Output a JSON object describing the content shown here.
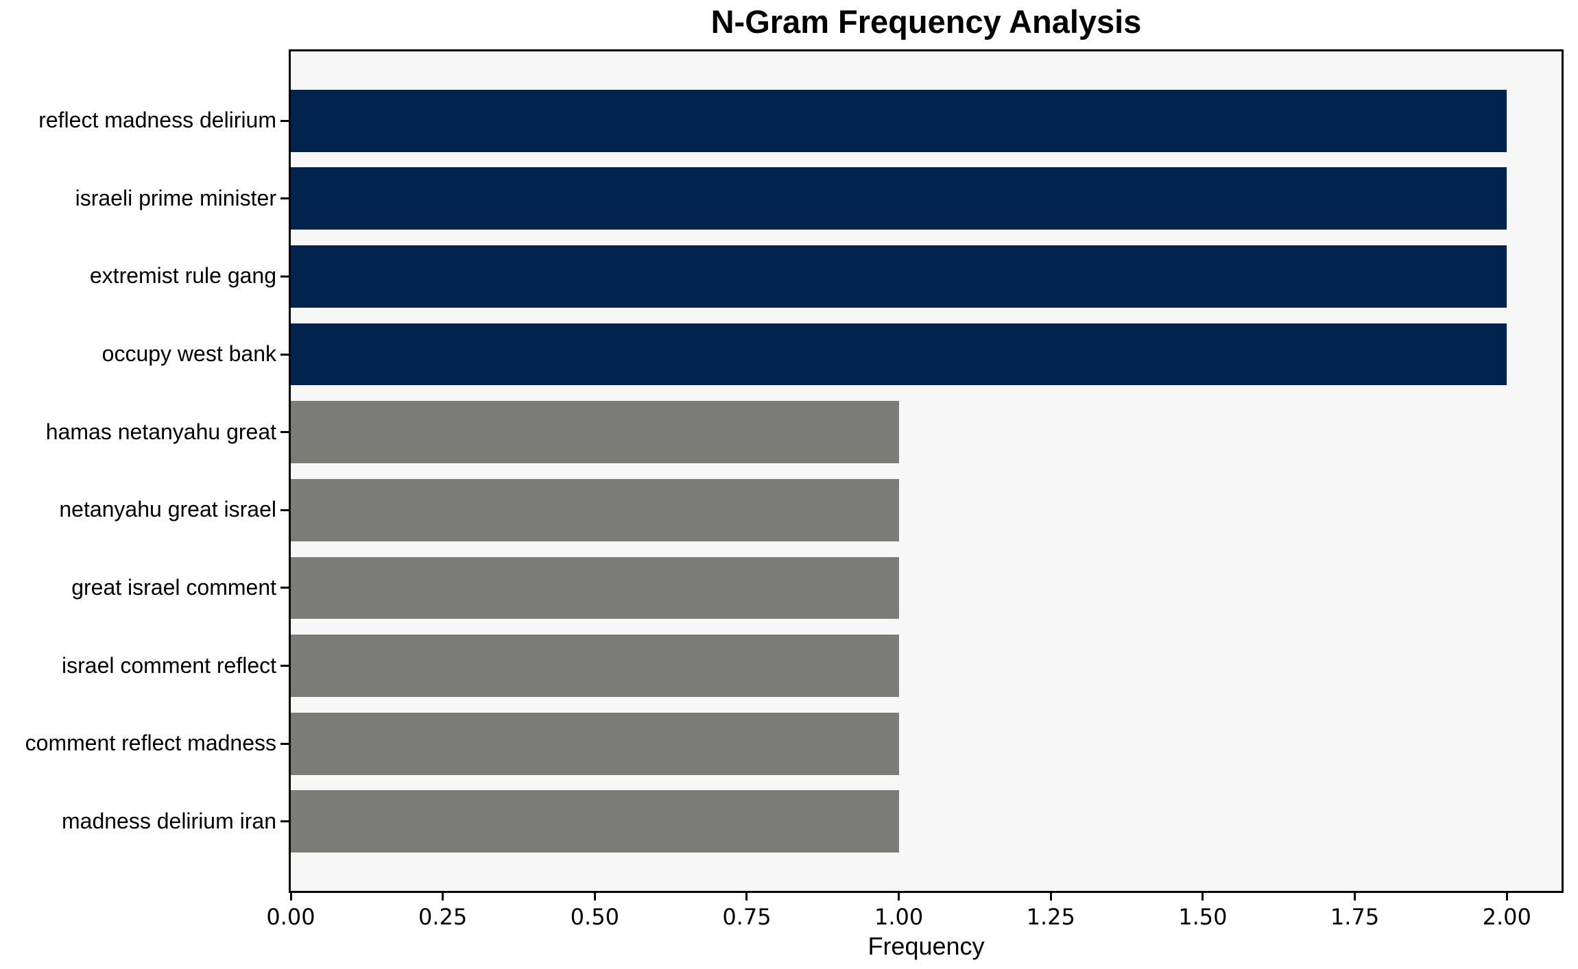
{
  "chart_data": {
    "type": "bar",
    "orientation": "horizontal",
    "title": "N-Gram Frequency Analysis",
    "xlabel": "Frequency",
    "ylabel": "",
    "categories": [
      "reflect madness delirium",
      "israeli prime minister",
      "extremist rule gang",
      "occupy west bank",
      "hamas netanyahu great",
      "netanyahu great israel",
      "great israel comment",
      "israel comment reflect",
      "comment reflect madness",
      "madness delirium iran"
    ],
    "values": [
      2,
      2,
      2,
      2,
      1,
      1,
      1,
      1,
      1,
      1
    ],
    "bar_colors": [
      "#02234d",
      "#02234d",
      "#02234d",
      "#02234d",
      "#7b7b78",
      "#7b7b78",
      "#7b7b78",
      "#7b7b78",
      "#7b7b78",
      "#7b7b78"
    ],
    "xticks": [
      "0.00",
      "0.25",
      "0.50",
      "0.75",
      "1.00",
      "1.25",
      "1.50",
      "1.75",
      "2.00"
    ],
    "xtick_values": [
      0,
      0.25,
      0.5,
      0.75,
      1.0,
      1.25,
      1.5,
      1.75,
      2.0
    ],
    "xlim": [
      0,
      2.09
    ],
    "grid": false,
    "legend": null,
    "colors": {
      "high_freq_bar": "#02234d",
      "low_freq_bar": "#7b7b78",
      "plot_background": "#f7f7f7",
      "figure_background": "#ffffff",
      "spine": "#000000",
      "text": "#000000"
    }
  }
}
